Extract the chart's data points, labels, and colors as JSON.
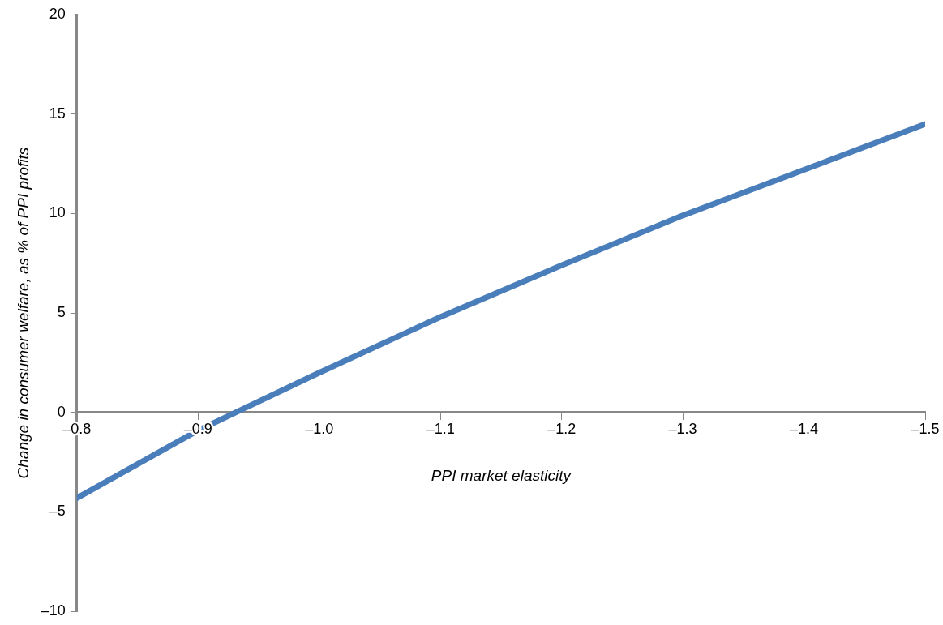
{
  "chart_data": {
    "type": "line",
    "xlabel": "PPI market elasticity",
    "ylabel": "Change in consumer welfare, as % of PPI profits",
    "x": [
      -0.8,
      -0.9,
      -1.0,
      -1.1,
      -1.2,
      -1.3,
      -1.4,
      -1.5
    ],
    "series": [
      {
        "color": "#4a7ebb",
        "values": [
          -4.3,
          -0.9,
          2.0,
          4.8,
          7.4,
          9.9,
          12.2,
          14.5
        ]
      }
    ],
    "xlim": [
      -0.8,
      -1.5
    ],
    "xticks": [
      {
        "value": -0.8,
        "label": "–0.8"
      },
      {
        "value": -0.9,
        "label": "–0.9"
      },
      {
        "value": -1.0,
        "label": "–1.0"
      },
      {
        "value": -1.1,
        "label": "–1.1"
      },
      {
        "value": -1.2,
        "label": "–1.2"
      },
      {
        "value": -1.3,
        "label": "–1.3"
      },
      {
        "value": -1.4,
        "label": "–1.4"
      },
      {
        "value": -1.5,
        "label": "–1.5"
      }
    ],
    "ylim": [
      -10,
      20
    ],
    "yticks": [
      {
        "value": -10,
        "label": "–10"
      },
      {
        "value": -5,
        "label": "–5"
      },
      0,
      5,
      10,
      15,
      20
    ],
    "grid": false,
    "legend": false,
    "marker": "none",
    "line_style": "solid"
  }
}
